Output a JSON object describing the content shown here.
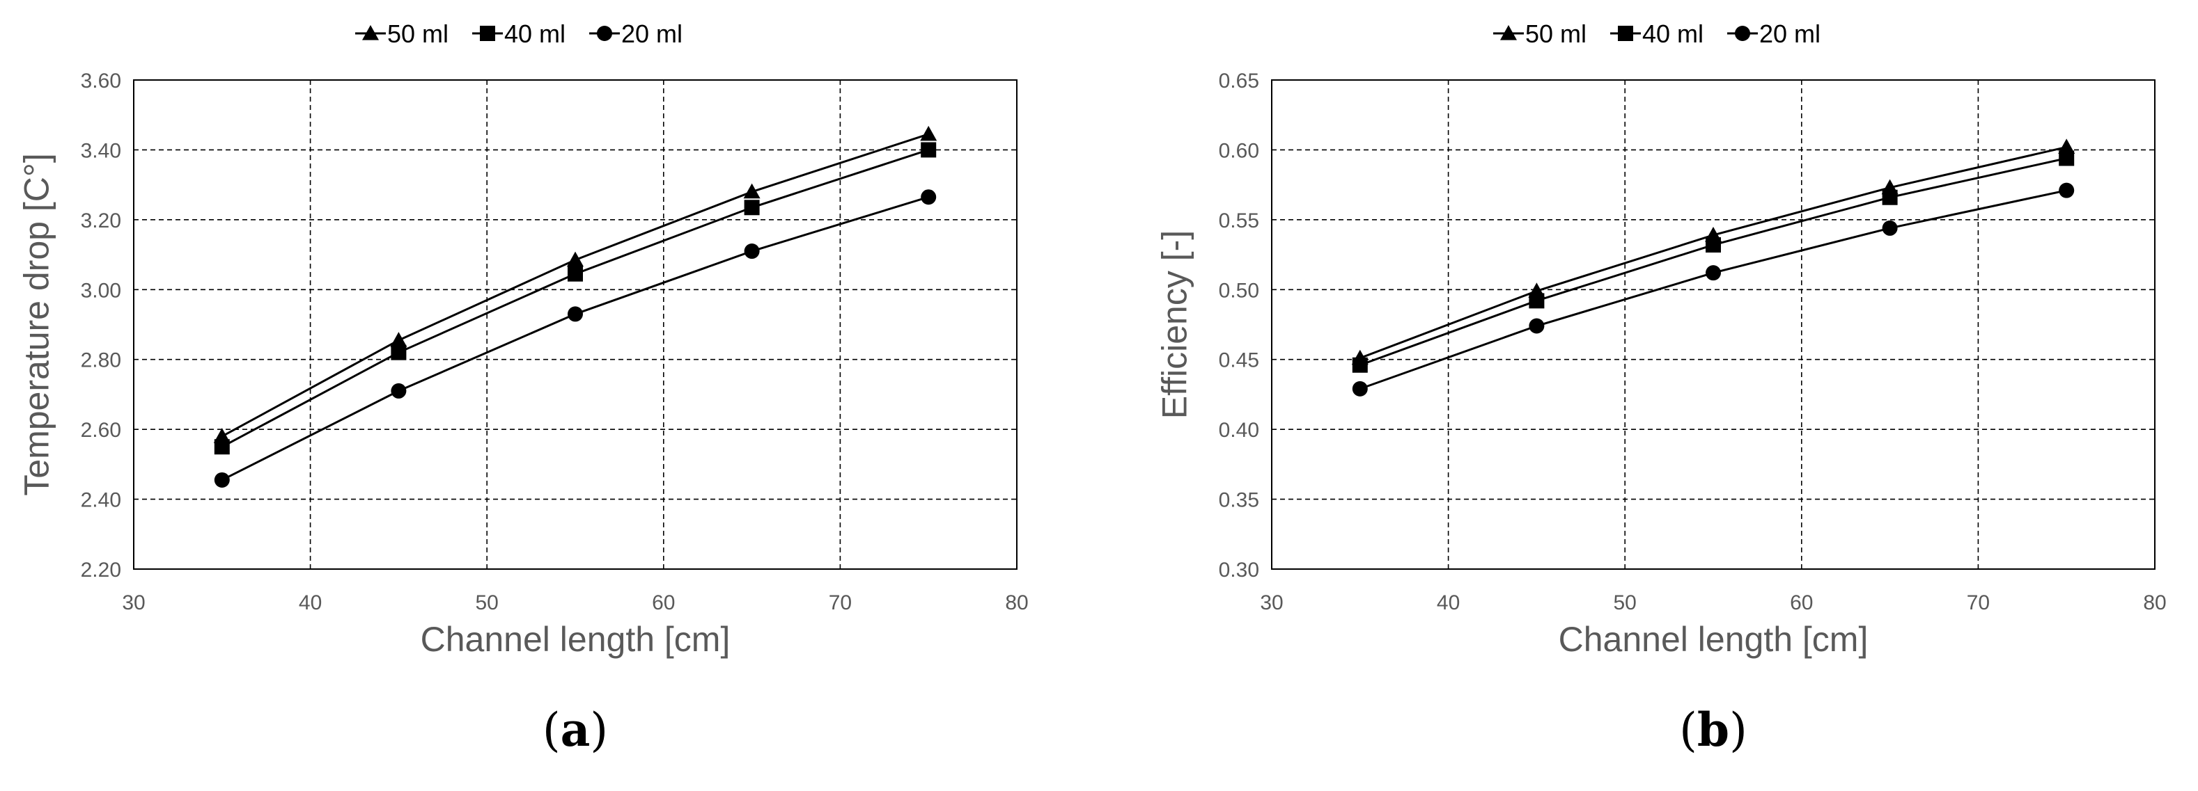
{
  "chart_data": [
    {
      "type": "line",
      "panel_label": "a",
      "panel_open": "(",
      "panel_close": ")",
      "xlabel": "Channel length [cm]",
      "ylabel": "Temperature drop [C°]",
      "xlim": [
        30,
        80
      ],
      "ylim": [
        2.2,
        3.6
      ],
      "x_ticks": [
        30,
        40,
        50,
        60,
        70,
        80
      ],
      "x_tick_labels": [
        "30",
        "40",
        "50",
        "60",
        "70",
        "80"
      ],
      "y_ticks": [
        2.2,
        2.4,
        2.6,
        2.8,
        3.0,
        3.2,
        3.4,
        3.6
      ],
      "y_tick_labels": [
        "2.20",
        "2.40",
        "2.60",
        "2.80",
        "3.00",
        "3.20",
        "3.40",
        "3.60"
      ],
      "grid": "dashed",
      "legend_position": "top-center",
      "x": [
        35,
        45,
        55,
        65,
        75
      ],
      "series": [
        {
          "name": "50 ml",
          "marker": "triangle",
          "values": [
            2.58,
            2.855,
            3.085,
            3.28,
            3.445
          ]
        },
        {
          "name": "40 ml",
          "marker": "square",
          "values": [
            2.55,
            2.82,
            3.045,
            3.235,
            3.4
          ]
        },
        {
          "name": "20 ml",
          "marker": "circle",
          "values": [
            2.455,
            2.71,
            2.93,
            3.11,
            3.265
          ]
        }
      ]
    },
    {
      "type": "line",
      "panel_label": "b",
      "panel_open": "(",
      "panel_close": ")",
      "xlabel": "Channel length [cm]",
      "ylabel": "Efficiency [-]",
      "xlim": [
        30,
        80
      ],
      "ylim": [
        0.3,
        0.65
      ],
      "x_ticks": [
        30,
        40,
        50,
        60,
        70,
        80
      ],
      "x_tick_labels": [
        "30",
        "40",
        "50",
        "60",
        "70",
        "80"
      ],
      "y_ticks": [
        0.3,
        0.35,
        0.4,
        0.45,
        0.5,
        0.55,
        0.6,
        0.65
      ],
      "y_tick_labels": [
        "0.30",
        "0.35",
        "0.40",
        "0.45",
        "0.50",
        "0.55",
        "0.60",
        "0.65"
      ],
      "grid": "dashed",
      "legend_position": "top-center",
      "x": [
        35,
        45,
        55,
        65,
        75
      ],
      "series": [
        {
          "name": "50 ml",
          "marker": "triangle",
          "values": [
            0.451,
            0.499,
            0.539,
            0.573,
            0.602
          ]
        },
        {
          "name": "40 ml",
          "marker": "square",
          "values": [
            0.446,
            0.492,
            0.532,
            0.566,
            0.594
          ]
        },
        {
          "name": "20 ml",
          "marker": "circle",
          "values": [
            0.429,
            0.474,
            0.512,
            0.544,
            0.571
          ]
        }
      ]
    }
  ],
  "colors": {
    "line": "#000000",
    "grid": "#000000",
    "axis_text": "#595959",
    "frame": "#000000"
  }
}
